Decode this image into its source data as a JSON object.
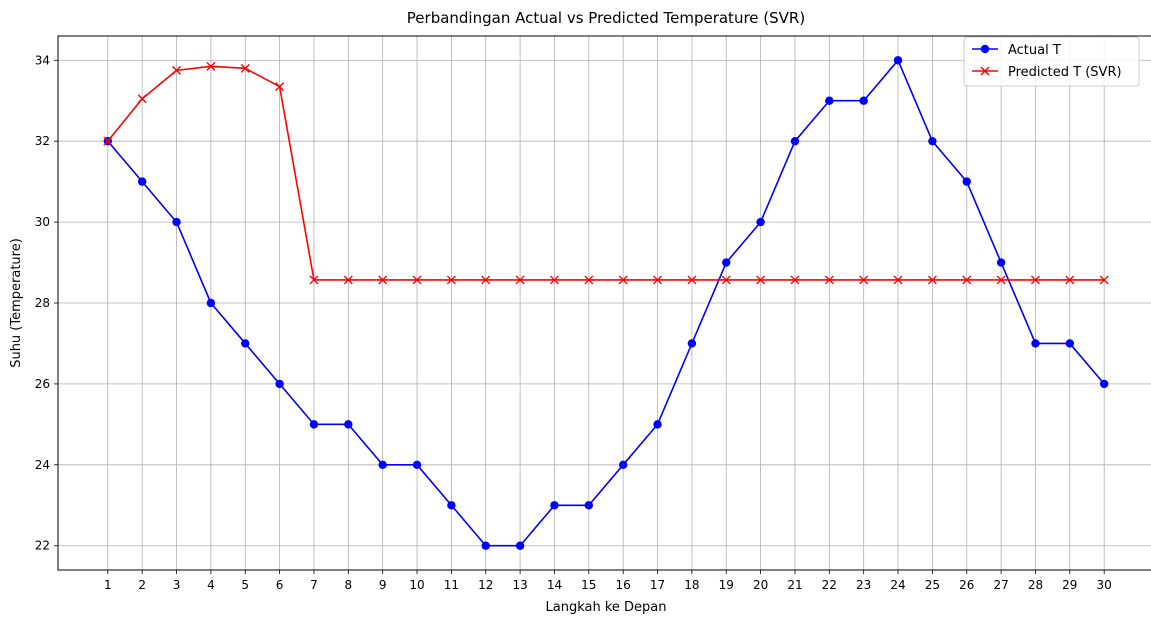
{
  "chart_data": {
    "type": "line",
    "title": "Perbandingan Actual vs Predicted Temperature (SVR)",
    "xlabel": "Langkah ke Depan",
    "ylabel": "Suhu (Temperature)",
    "x": [
      1,
      2,
      3,
      4,
      5,
      6,
      7,
      8,
      9,
      10,
      11,
      12,
      13,
      14,
      15,
      16,
      17,
      18,
      19,
      20,
      21,
      22,
      23,
      24,
      25,
      26,
      27,
      28,
      29,
      30
    ],
    "xlim": [
      -0.45,
      31.45
    ],
    "ylim": [
      21.4,
      34.6
    ],
    "yticks": [
      22,
      24,
      26,
      28,
      30,
      32,
      34
    ],
    "grid": true,
    "legend_position": "top-right",
    "series": [
      {
        "name": "Actual T",
        "color": "#0000ff",
        "marker": "circle",
        "values": [
          32,
          31,
          30,
          28,
          27,
          26,
          25,
          25,
          24,
          24,
          23,
          22,
          22,
          23,
          23,
          24,
          25,
          27,
          29,
          30,
          32,
          33,
          33,
          34,
          32,
          31,
          29,
          27,
          27,
          26
        ]
      },
      {
        "name": "Predicted T (SVR)",
        "color": "#ff0000",
        "marker": "x",
        "values": [
          32.0,
          33.05,
          33.75,
          33.85,
          33.8,
          33.35,
          28.57,
          28.57,
          28.57,
          28.57,
          28.57,
          28.57,
          28.57,
          28.57,
          28.57,
          28.57,
          28.57,
          28.57,
          28.57,
          28.57,
          28.57,
          28.57,
          28.57,
          28.57,
          28.57,
          28.57,
          28.57,
          28.57,
          28.57,
          28.57
        ]
      }
    ]
  }
}
